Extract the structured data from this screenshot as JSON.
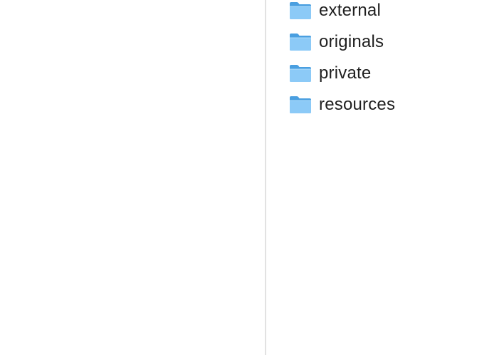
{
  "folders": [
    {
      "name": "external",
      "icon": "folder-icon"
    },
    {
      "name": "originals",
      "icon": "folder-icon"
    },
    {
      "name": "private",
      "icon": "folder-icon"
    },
    {
      "name": "resources",
      "icon": "folder-icon"
    }
  ],
  "colors": {
    "folder_back": "#4a9fe0",
    "folder_front": "#8ccaf7",
    "divider": "#e2e2e2",
    "text": "#1f1f1f"
  }
}
